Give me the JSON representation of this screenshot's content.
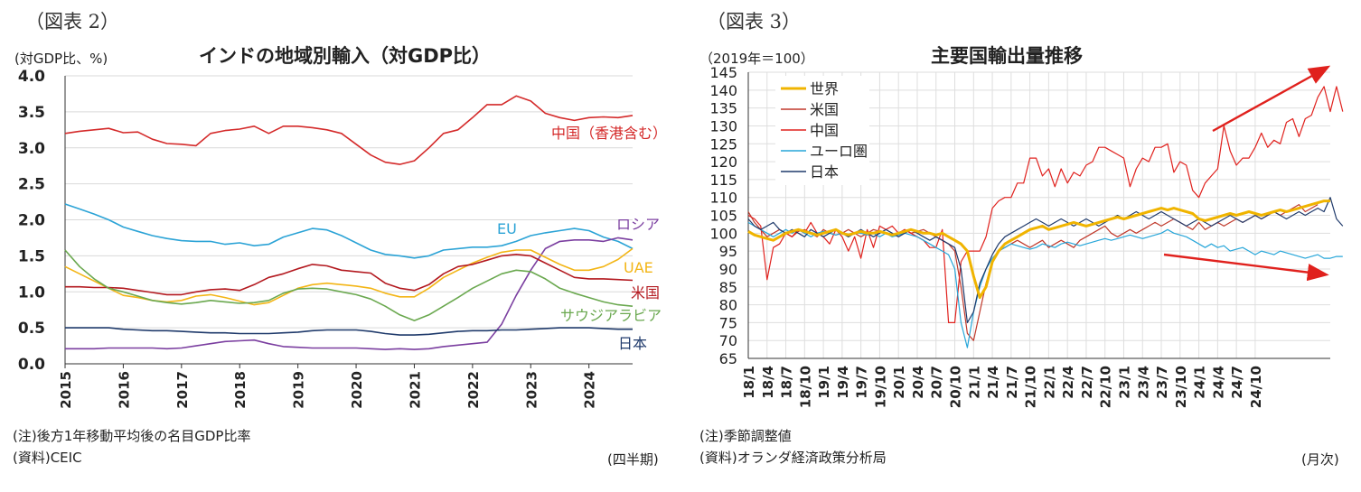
{
  "left": {
    "fig_label": "（図表 2）",
    "title": "インドの地域別輸入（対GDP比）",
    "unit": "(対GDP比、%)",
    "note1": "(注)後方1年移動平均後の名目GDP比率",
    "note2": "(資料)CEIC",
    "freq": "(四半期)"
  },
  "right": {
    "fig_label": "（図表 3）",
    "title": "主要国輸出量推移",
    "unit": "（2019年＝100）",
    "note1": "(注)季節調整値",
    "note2": "(資料)オランダ経済政策分析局",
    "freq": "(月次)"
  },
  "chart_data": [
    {
      "type": "line",
      "title": "インドの地域別輸入（対GDP比）",
      "ylabel": "(対GDP比、%)",
      "xlabel": "(四半期)",
      "ylim": [
        0.0,
        4.0
      ],
      "y_ticks": [
        "0.0",
        "0.5",
        "1.0",
        "1.5",
        "2.0",
        "2.5",
        "3.0",
        "3.5",
        "4.0"
      ],
      "x_ticks": [
        "2015",
        "2016",
        "2017",
        "2018",
        "2019",
        "2020",
        "2021",
        "2022",
        "2023",
        "2024"
      ],
      "x_start": 2015.0,
      "x_step": 0.25,
      "grid": "horizontal",
      "series": [
        {
          "name": "中国（香港含む）",
          "color": "#d42a2a",
          "values": [
            3.2,
            3.23,
            3.25,
            3.27,
            3.21,
            3.22,
            3.12,
            3.06,
            3.05,
            3.03,
            3.2,
            3.24,
            3.26,
            3.3,
            3.2,
            3.3,
            3.3,
            3.28,
            3.25,
            3.2,
            3.05,
            2.9,
            2.8,
            2.77,
            2.82,
            3.0,
            3.2,
            3.25,
            3.42,
            3.6,
            3.6,
            3.72,
            3.65,
            3.48,
            3.42,
            3.38,
            3.42,
            3.43,
            3.42,
            3.45
          ]
        },
        {
          "name": "EU",
          "color": "#2ba3d6",
          "values": [
            2.22,
            2.15,
            2.08,
            2.0,
            1.9,
            1.84,
            1.78,
            1.74,
            1.71,
            1.7,
            1.7,
            1.66,
            1.68,
            1.64,
            1.66,
            1.76,
            1.82,
            1.88,
            1.86,
            1.78,
            1.68,
            1.58,
            1.52,
            1.5,
            1.47,
            1.5,
            1.58,
            1.6,
            1.62,
            1.62,
            1.64,
            1.7,
            1.78,
            1.82,
            1.85,
            1.88,
            1.85,
            1.76,
            1.7,
            1.6
          ]
        },
        {
          "name": "ロシア",
          "color": "#7b3fa0",
          "values": [
            0.21,
            0.21,
            0.21,
            0.22,
            0.22,
            0.22,
            0.22,
            0.21,
            0.22,
            0.25,
            0.28,
            0.31,
            0.32,
            0.33,
            0.28,
            0.24,
            0.23,
            0.22,
            0.22,
            0.22,
            0.22,
            0.21,
            0.2,
            0.21,
            0.2,
            0.21,
            0.24,
            0.26,
            0.28,
            0.3,
            0.55,
            0.95,
            1.3,
            1.6,
            1.7,
            1.72,
            1.72,
            1.7,
            1.75,
            1.72
          ]
        },
        {
          "name": "UAE",
          "color": "#f3b515",
          "values": [
            1.35,
            1.25,
            1.15,
            1.05,
            0.95,
            0.92,
            0.88,
            0.86,
            0.88,
            0.94,
            0.96,
            0.92,
            0.87,
            0.82,
            0.85,
            0.95,
            1.05,
            1.1,
            1.12,
            1.1,
            1.08,
            1.05,
            0.98,
            0.93,
            0.93,
            1.05,
            1.2,
            1.3,
            1.4,
            1.48,
            1.55,
            1.58,
            1.58,
            1.48,
            1.38,
            1.3,
            1.3,
            1.35,
            1.45,
            1.6
          ]
        },
        {
          "name": "米国",
          "color": "#b3191f",
          "values": [
            1.07,
            1.07,
            1.06,
            1.06,
            1.05,
            1.02,
            0.99,
            0.96,
            0.96,
            1.0,
            1.03,
            1.04,
            1.02,
            1.1,
            1.2,
            1.25,
            1.32,
            1.38,
            1.36,
            1.3,
            1.28,
            1.26,
            1.12,
            1.05,
            1.02,
            1.1,
            1.25,
            1.35,
            1.38,
            1.44,
            1.5,
            1.52,
            1.5,
            1.4,
            1.3,
            1.2,
            1.18,
            1.18,
            1.17,
            1.16
          ]
        },
        {
          "name": "サウジアラビア",
          "color": "#6aa84f",
          "values": [
            1.58,
            1.35,
            1.18,
            1.05,
            1.0,
            0.94,
            0.88,
            0.85,
            0.83,
            0.85,
            0.88,
            0.86,
            0.84,
            0.85,
            0.88,
            0.98,
            1.04,
            1.05,
            1.04,
            1.0,
            0.96,
            0.9,
            0.8,
            0.68,
            0.6,
            0.68,
            0.8,
            0.92,
            1.05,
            1.15,
            1.25,
            1.3,
            1.28,
            1.18,
            1.05,
            0.98,
            0.92,
            0.86,
            0.82,
            0.8
          ]
        },
        {
          "name": "日本",
          "color": "#1f3a6b",
          "values": [
            0.5,
            0.5,
            0.5,
            0.5,
            0.48,
            0.47,
            0.46,
            0.46,
            0.45,
            0.44,
            0.43,
            0.43,
            0.42,
            0.42,
            0.42,
            0.43,
            0.44,
            0.46,
            0.47,
            0.47,
            0.47,
            0.45,
            0.42,
            0.4,
            0.4,
            0.41,
            0.43,
            0.45,
            0.46,
            0.46,
            0.47,
            0.47,
            0.48,
            0.49,
            0.5,
            0.5,
            0.5,
            0.49,
            0.48,
            0.48
          ]
        }
      ]
    },
    {
      "type": "line",
      "title": "主要国輸出量推移",
      "ylabel": "（2019年＝100）",
      "xlabel": "(月次)",
      "ylim": [
        65,
        145
      ],
      "y_ticks": [
        "65",
        "70",
        "75",
        "80",
        "85",
        "90",
        "95",
        "100",
        "105",
        "110",
        "115",
        "120",
        "125",
        "130",
        "135",
        "140",
        "145"
      ],
      "x_ticks": [
        "18/1",
        "18/4",
        "18/7",
        "18/10",
        "19/1",
        "19/4",
        "19/7",
        "19/10",
        "20/1",
        "20/4",
        "20/7",
        "20/10",
        "21/1",
        "21/4",
        "21/7",
        "21/10",
        "22/1",
        "22/4",
        "22/7",
        "22/10",
        "23/1",
        "23/4",
        "23/7",
        "23/10",
        "24/1",
        "24/4",
        "24/7",
        "24/10"
      ],
      "legend": "top-left",
      "grid": "both",
      "series": [
        {
          "name": "世界",
          "color": "#f0b400",
          "width": 3,
          "values": [
            100.5,
            99.5,
            99,
            98.5,
            98,
            99,
            100,
            100.5,
            101,
            100.5,
            100,
            99.5,
            100,
            100.5,
            101,
            100,
            99.5,
            100,
            100.5,
            100,
            100,
            100.5,
            100,
            99.5,
            100,
            100.5,
            101,
            100.5,
            100,
            100,
            99.5,
            100,
            99,
            98,
            97,
            95,
            88,
            82,
            85,
            92,
            95,
            97,
            98,
            99,
            100,
            101,
            101.5,
            102,
            101,
            101.5,
            102,
            102.5,
            103,
            102.5,
            102,
            102.5,
            103,
            103.5,
            104,
            104.5,
            104,
            104.5,
            105,
            105.5,
            106,
            106.5,
            107,
            106.5,
            107,
            106.5,
            106,
            105.5,
            104,
            103.5,
            104,
            104.5,
            105,
            105.5,
            105,
            105.5,
            106,
            105.5,
            105,
            105.5,
            106,
            106.5,
            106,
            106.5,
            107,
            107.5,
            108,
            108.5,
            109,
            109
          ]
        },
        {
          "name": "米国",
          "color": "#c0392b",
          "width": 1.2,
          "values": [
            106,
            103,
            101,
            99,
            100,
            101,
            100,
            99,
            100.5,
            101,
            100,
            99,
            101,
            100,
            99.5,
            100,
            101,
            100,
            99,
            100,
            101,
            100.5,
            100,
            99.5,
            100,
            101,
            100,
            100.5,
            101,
            100,
            99,
            98,
            97,
            95,
            85,
            72,
            70,
            78,
            86,
            92,
            95,
            96,
            97,
            98,
            97,
            96,
            97,
            98,
            96,
            97,
            98,
            97,
            96,
            98,
            99,
            100,
            101,
            102,
            100,
            99,
            100,
            101,
            100,
            101,
            102,
            103,
            102,
            103,
            104,
            103,
            102,
            101,
            103,
            101,
            102,
            103,
            102,
            103,
            104,
            103,
            104,
            105,
            104,
            105,
            106,
            105,
            106,
            107,
            108,
            106,
            107,
            108
          ]
        },
        {
          "name": "中国",
          "color": "#e0211d",
          "width": 1.2,
          "values": [
            105,
            104,
            102,
            87,
            96,
            97,
            100,
            99,
            101,
            100,
            103,
            100,
            99,
            97,
            101,
            99,
            95,
            99,
            93,
            101,
            96,
            102,
            101,
            102,
            100,
            101,
            100,
            99,
            98,
            96,
            96,
            101,
            75,
            75,
            92,
            95,
            95,
            95,
            99,
            107,
            109,
            110,
            110,
            114,
            114,
            121,
            121,
            116,
            118,
            113,
            118,
            114,
            117,
            116,
            119,
            120,
            124,
            124,
            123,
            122,
            121,
            113,
            118,
            121,
            120,
            124,
            124,
            125,
            117,
            120,
            119,
            112,
            110,
            114,
            116,
            118,
            130,
            123,
            119,
            121,
            121,
            124,
            128,
            124,
            126,
            125,
            131,
            132,
            127,
            132,
            133,
            138,
            141,
            134,
            141,
            134
          ]
        },
        {
          "name": "ユーロ圏",
          "color": "#27a6d9",
          "width": 1.2,
          "values": [
            103,
            102,
            101,
            100,
            99,
            100,
            101,
            100,
            101,
            100,
            99,
            100,
            100.5,
            100,
            99.5,
            100,
            99,
            100,
            100,
            99.5,
            100,
            99,
            100,
            99,
            99.5,
            100,
            99.5,
            99,
            98,
            97,
            96,
            95,
            94,
            90,
            75,
            68,
            78,
            85,
            90,
            93,
            95,
            96,
            97,
            96.5,
            96,
            95.5,
            96,
            97,
            96.5,
            96,
            97,
            97.5,
            97,
            96.5,
            97,
            97.5,
            98,
            98.5,
            98,
            98.5,
            99,
            99.5,
            99,
            98.5,
            99,
            99.5,
            100,
            101,
            100,
            99.5,
            99,
            98,
            97,
            96,
            97,
            96,
            96.5,
            95,
            95.5,
            96,
            95,
            94,
            95,
            94.5,
            94,
            95,
            94.5,
            94,
            93.5,
            93,
            93.5,
            94,
            93,
            93,
            93.5,
            93.5
          ]
        },
        {
          "name": "日本",
          "color": "#1f3a6b",
          "width": 1.2,
          "values": [
            104,
            102,
            101,
            102,
            103,
            101,
            100,
            101,
            100,
            99,
            101,
            100,
            99,
            100,
            101,
            100,
            99,
            100,
            101,
            100,
            99,
            100,
            101,
            100,
            99,
            100,
            101,
            100,
            99,
            98,
            99,
            98,
            97,
            96,
            90,
            75,
            78,
            86,
            90,
            94,
            97,
            99,
            100,
            101,
            102,
            103,
            104,
            103,
            102,
            103,
            104,
            103,
            102,
            103,
            104,
            103,
            102,
            103,
            104,
            105,
            104,
            105,
            106,
            105,
            104,
            105,
            106,
            105,
            104,
            103,
            102,
            103,
            104,
            103,
            102,
            103,
            104,
            105,
            104,
            103,
            104,
            105,
            104,
            105,
            106,
            105,
            104,
            105,
            106,
            105,
            106,
            107,
            106,
            110,
            104,
            102
          ]
        }
      ]
    }
  ]
}
